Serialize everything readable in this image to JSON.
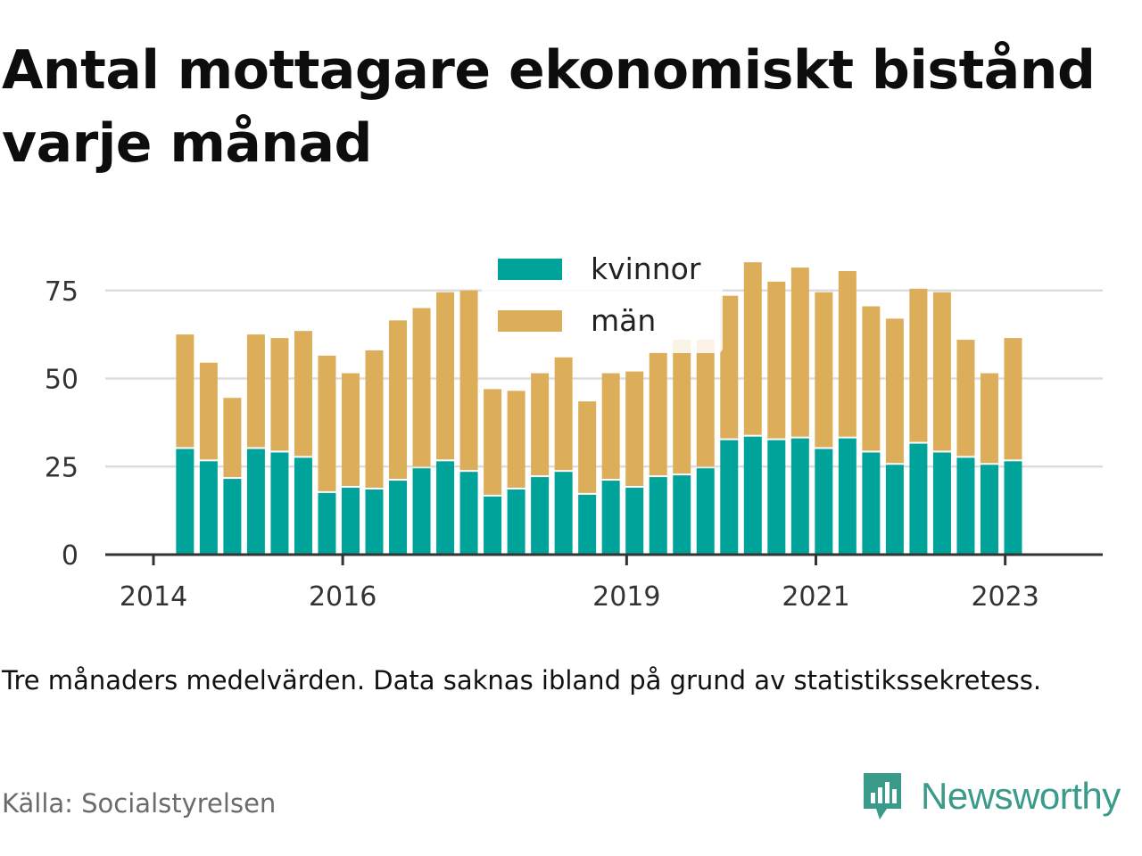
{
  "title": "Antal mottagare ekonomiskt bistånd varje månad",
  "note": "Tre månaders medelvärden. Data saknas ibland på grund av statistikssekretess.",
  "source": "Källa: Socialstyrelsen",
  "brand": {
    "name": "Newsworthy",
    "color": "#3a9b8a"
  },
  "colors": {
    "kvinnor": "#00a39a",
    "man": "#dcae5a",
    "grid": "#dddddd",
    "axis": "#333333"
  },
  "chart_data": {
    "type": "bar",
    "stacked": true,
    "x": [
      "2014-05",
      "2014-08",
      "2014-11",
      "2015-02",
      "2015-05",
      "2015-08",
      "2015-11",
      "2016-02",
      "2016-05",
      "2016-08",
      "2016-11",
      "2017-02",
      "2017-05",
      "2017-08",
      "2017-11",
      "2018-02",
      "2018-05",
      "2018-08",
      "2018-11",
      "2019-02",
      "2019-05",
      "2019-08",
      "2019-11",
      "2020-02",
      "2020-05",
      "2020-08",
      "2020-11",
      "2021-02",
      "2021-05",
      "2021-08",
      "2021-11",
      "2022-02",
      "2022-05",
      "2022-08",
      "2022-11",
      "2023-02",
      "2023-05"
    ],
    "series": [
      {
        "name": "kvinnor",
        "values": [
          30,
          26.5,
          21.5,
          30,
          29,
          27.5,
          17.5,
          19,
          18.5,
          21,
          24.5,
          26.5,
          23.5,
          16.5,
          18.5,
          22,
          23.5,
          17,
          21,
          19,
          22,
          22.5,
          24.5,
          32.5,
          33.5,
          32.5,
          33,
          30,
          33,
          29,
          25.5,
          31.5,
          29,
          27.5,
          25.5,
          26.5,
          null
        ]
      },
      {
        "name": "män",
        "values": [
          32.5,
          28,
          23,
          32.5,
          32.5,
          36,
          39,
          32.5,
          39.5,
          45.5,
          45.5,
          48,
          51.5,
          30.5,
          28,
          29.5,
          32.5,
          26.5,
          30.5,
          33,
          35.5,
          38.5,
          36.5,
          41,
          49.5,
          45,
          48.5,
          44.5,
          47.5,
          41.5,
          41.5,
          44,
          45.5,
          33.5,
          26,
          35,
          null
        ]
      }
    ],
    "yticks": [
      0,
      25,
      50,
      75
    ],
    "ylim": [
      0,
      85
    ],
    "xticks": [
      "2014",
      "2016",
      "2019",
      "2021",
      "2023"
    ],
    "xlim": [
      "2014-01",
      "2023-09"
    ],
    "grid": true,
    "legend": {
      "position": "top-center",
      "entries": [
        "kvinnor",
        "män"
      ]
    }
  }
}
